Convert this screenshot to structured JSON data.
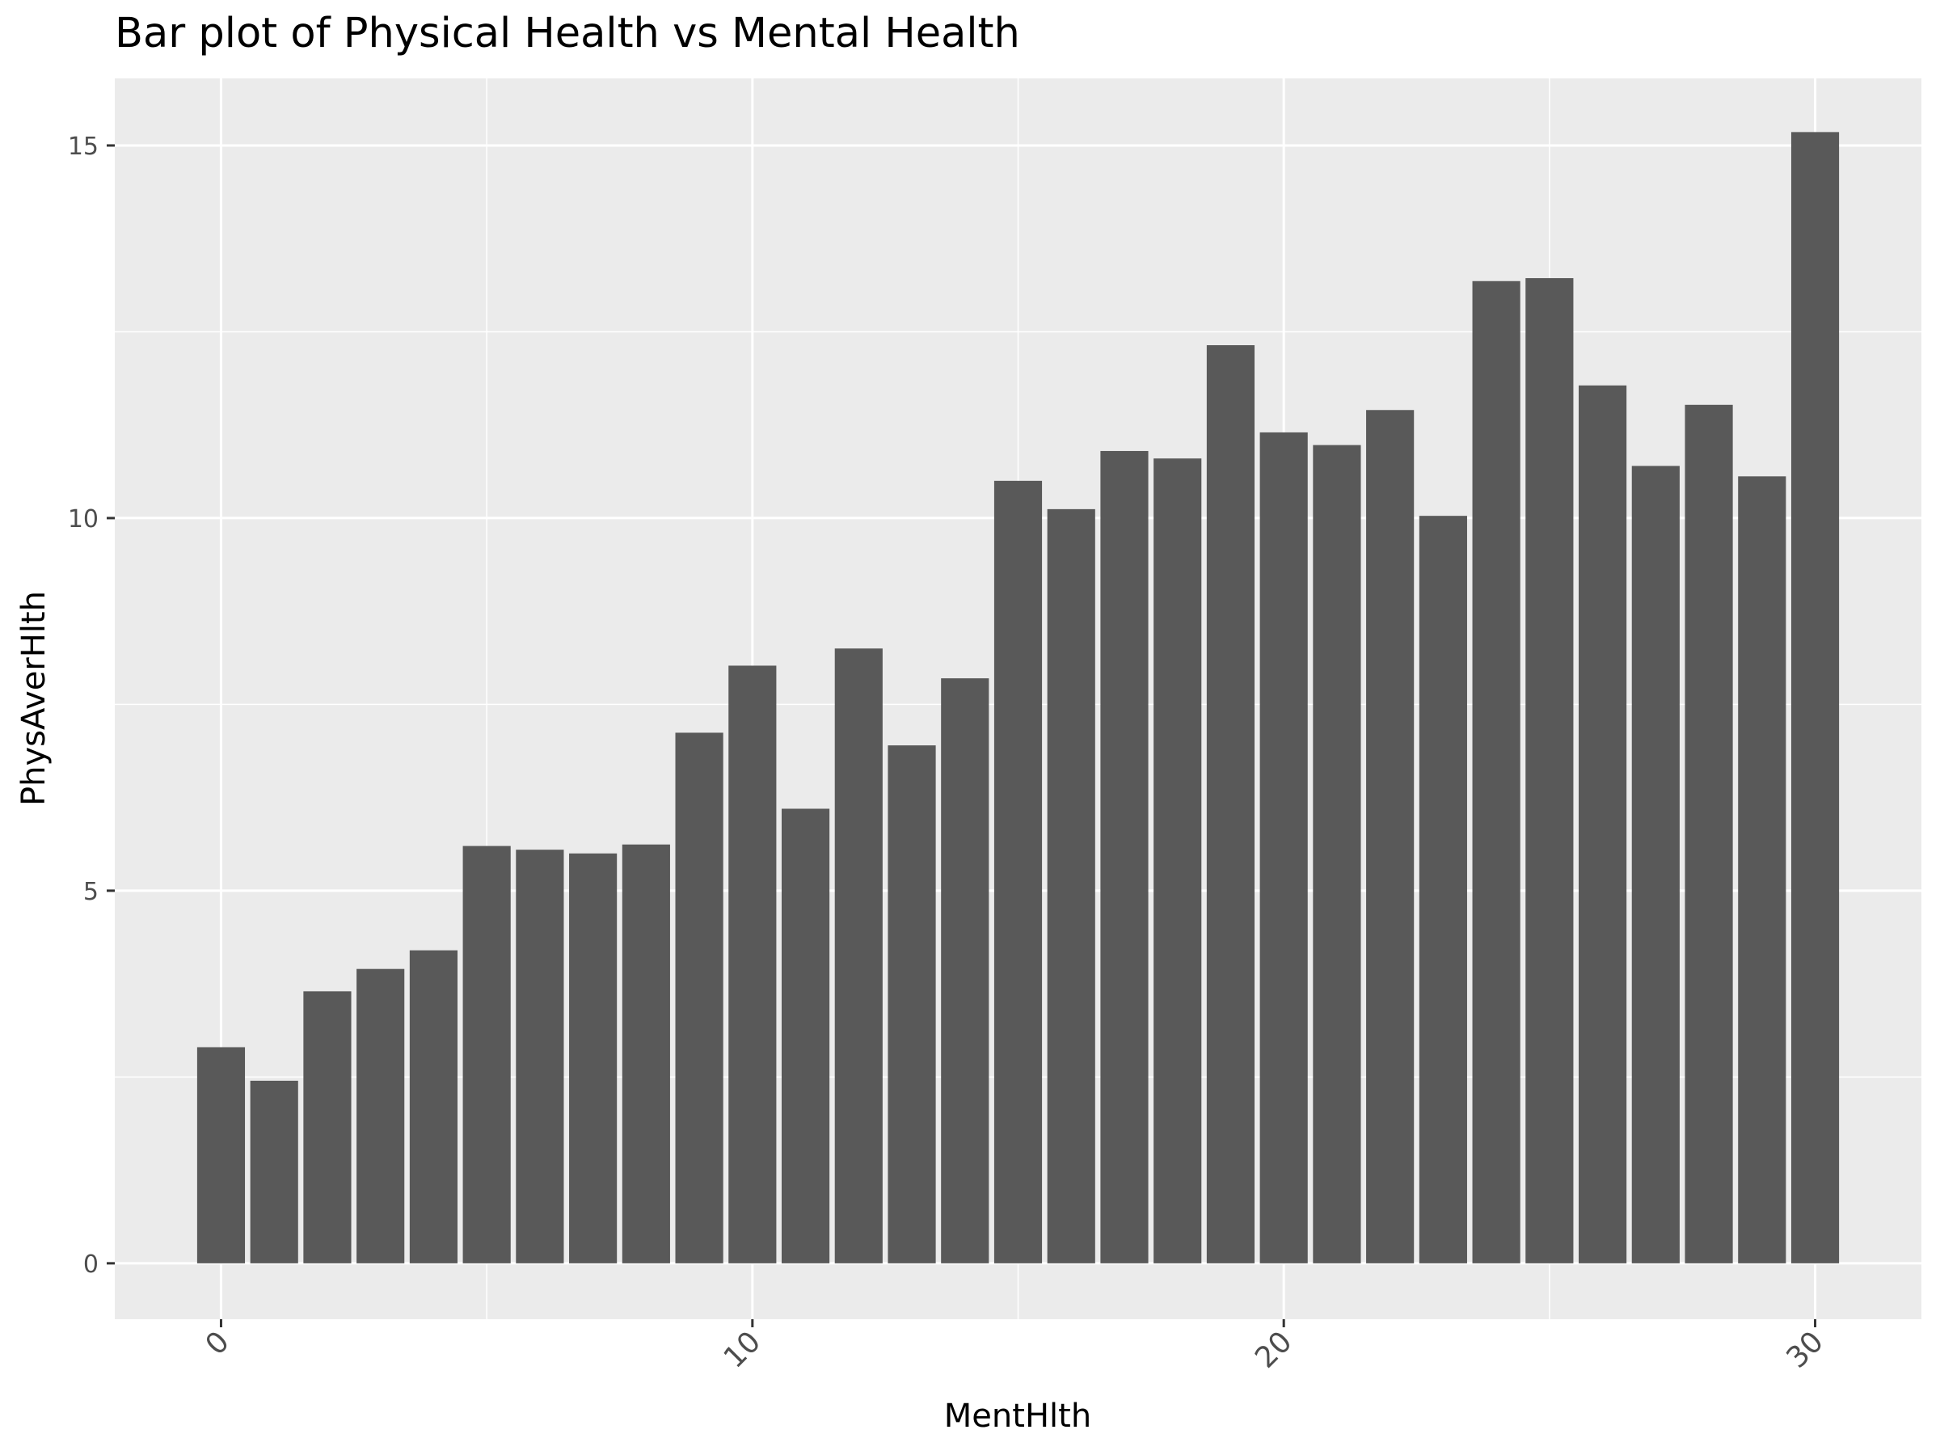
{
  "chart_data": {
    "type": "bar",
    "title": "Bar plot of Physical Health vs Mental Health",
    "xlabel": "MentHlth",
    "ylabel": "PhysAverHlth",
    "x": [
      0,
      1,
      2,
      3,
      4,
      5,
      6,
      7,
      8,
      9,
      10,
      11,
      12,
      13,
      14,
      15,
      16,
      17,
      18,
      19,
      20,
      21,
      22,
      23,
      24,
      25,
      26,
      27,
      28,
      29,
      30
    ],
    "values": [
      2.9,
      2.45,
      3.65,
      3.95,
      4.2,
      5.6,
      5.55,
      5.5,
      5.62,
      7.12,
      8.02,
      6.1,
      8.25,
      6.95,
      7.85,
      10.5,
      10.12,
      10.9,
      10.8,
      12.32,
      11.15,
      10.98,
      11.45,
      10.03,
      13.18,
      13.22,
      11.78,
      10.7,
      11.52,
      10.56,
      15.18
    ],
    "xlim": [
      -2,
      32
    ],
    "ylim": [
      -0.75,
      15.9
    ],
    "xticks": [
      0,
      10,
      20,
      30
    ],
    "xtick_labels": [
      "0",
      "10",
      "20",
      "30"
    ],
    "yticks": [
      0,
      5,
      10,
      15
    ],
    "ytick_labels": [
      "0",
      "5",
      "10",
      "15"
    ],
    "grid": true,
    "colors": {
      "bar": "#595959",
      "panel_background": "#ebebeb",
      "grid": "#ffffff"
    }
  }
}
